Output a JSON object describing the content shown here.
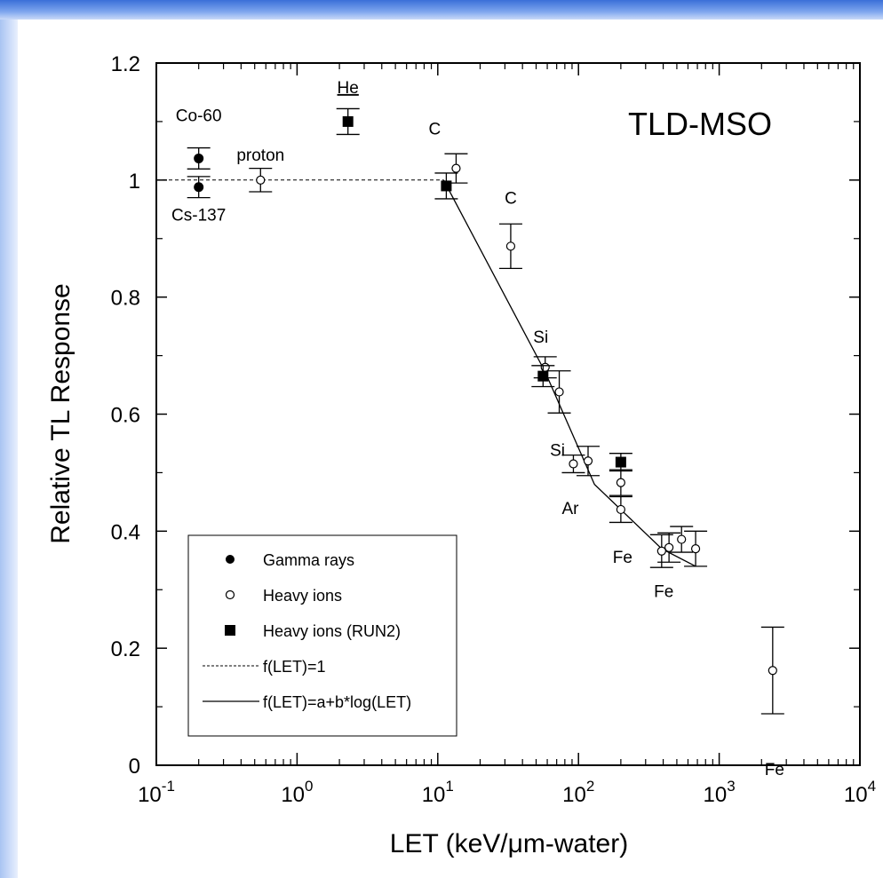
{
  "chart_data": {
    "type": "scatter",
    "title": "TLD-MSO",
    "xlabel": "LET (keV/μm-water)",
    "ylabel": "Relative TL Response",
    "xscale": "log",
    "xlim": [
      0.1,
      10000
    ],
    "ylim": [
      0,
      1.2
    ],
    "x_ticks": [
      {
        "value": 0.1,
        "base": "10",
        "exp": "-1"
      },
      {
        "value": 1,
        "base": "10",
        "exp": "0"
      },
      {
        "value": 10,
        "base": "10",
        "exp": "1"
      },
      {
        "value": 100,
        "base": "10",
        "exp": "2"
      },
      {
        "value": 1000,
        "base": "10",
        "exp": "3"
      },
      {
        "value": 10000,
        "base": "10",
        "exp": "4"
      }
    ],
    "y_ticks": [
      {
        "value": 0,
        "label": "0"
      },
      {
        "value": 0.2,
        "label": "0.2"
      },
      {
        "value": 0.4,
        "label": "0.4"
      },
      {
        "value": 0.6,
        "label": "0.6"
      },
      {
        "value": 0.8,
        "label": "0.8"
      },
      {
        "value": 1.0,
        "label": "1"
      },
      {
        "value": 1.2,
        "label": "1.2"
      }
    ],
    "grid": false,
    "legend_position": "bottom-left",
    "series": [
      {
        "name": "Gamma rays",
        "marker": "filled-circle",
        "points": [
          {
            "x": 0.2,
            "y": 1.037,
            "err": 0.018
          },
          {
            "x": 0.2,
            "y": 0.988,
            "err": 0.018
          }
        ]
      },
      {
        "name": "Heavy ions",
        "marker": "open-circle",
        "points": [
          {
            "x": 0.55,
            "y": 1.0,
            "err": 0.02
          },
          {
            "x": 13.5,
            "y": 1.02,
            "err": 0.025
          },
          {
            "x": 33,
            "y": 0.887,
            "err": 0.038
          },
          {
            "x": 58,
            "y": 0.68,
            "err": 0.018
          },
          {
            "x": 73,
            "y": 0.638,
            "err": 0.036
          },
          {
            "x": 92,
            "y": 0.515,
            "err": 0.015
          },
          {
            "x": 117,
            "y": 0.52,
            "err": 0.025
          },
          {
            "x": 200,
            "y": 0.483,
            "err": 0.022
          },
          {
            "x": 200,
            "y": 0.437,
            "err": 0.022
          },
          {
            "x": 390,
            "y": 0.366,
            "err": 0.028
          },
          {
            "x": 440,
            "y": 0.372,
            "err": 0.025
          },
          {
            "x": 540,
            "y": 0.386,
            "err": 0.022
          },
          {
            "x": 680,
            "y": 0.37,
            "err": 0.03
          },
          {
            "x": 2400,
            "y": 0.162,
            "err": 0.074
          }
        ]
      },
      {
        "name": "Heavy ions (RUN2)",
        "marker": "filled-square",
        "points": [
          {
            "x": 2.3,
            "y": 1.1,
            "err": 0.022
          },
          {
            "x": 11.5,
            "y": 0.99,
            "err": 0.022
          },
          {
            "x": 56,
            "y": 0.665,
            "err": 0.018
          },
          {
            "x": 200,
            "y": 0.518,
            "err": 0.015
          }
        ]
      }
    ],
    "fit_lines": [
      {
        "name": "f(LET)=1",
        "style": "dashed",
        "points": [
          {
            "x": 0.1,
            "y": 1.0
          },
          {
            "x": 11,
            "y": 1.0
          }
        ]
      },
      {
        "name": "f(LET)=a+b*log(LET)",
        "style": "solid",
        "points": [
          {
            "x": 11,
            "y": 1.0
          },
          {
            "x": 58,
            "y": 0.672
          },
          {
            "x": 130,
            "y": 0.48
          },
          {
            "x": 390,
            "y": 0.37
          },
          {
            "x": 680,
            "y": 0.34
          }
        ]
      }
    ],
    "annotations": [
      {
        "text": "Co-60",
        "x": 0.2,
        "y": 1.037,
        "pos": "above"
      },
      {
        "text": "Cs-137",
        "x": 0.2,
        "y": 0.988,
        "pos": "below"
      },
      {
        "text": "proton",
        "x": 0.55,
        "y": 1.0,
        "pos": "above"
      },
      {
        "text": "He",
        "x": 2.3,
        "y": 1.1,
        "pos": "above"
      },
      {
        "text": "C",
        "x": 11.5,
        "y": 0.99,
        "pos": "above"
      },
      {
        "text": "C",
        "x": 33,
        "y": 0.887,
        "pos": "above"
      },
      {
        "text": "Si",
        "x": 58,
        "y": 0.68,
        "pos": "above"
      },
      {
        "text": "Si",
        "x": 73,
        "y": 0.638,
        "pos": "below"
      },
      {
        "text": "Ar",
        "x": 117,
        "y": 0.52,
        "pos": "below"
      },
      {
        "text": "Fe",
        "x": 200,
        "y": 0.437,
        "pos": "below"
      },
      {
        "text": "Fe",
        "x": 540,
        "y": 0.386,
        "pos": "below"
      },
      {
        "text": "Fe",
        "x": 2400,
        "y": 0.162,
        "pos": "below"
      }
    ]
  }
}
